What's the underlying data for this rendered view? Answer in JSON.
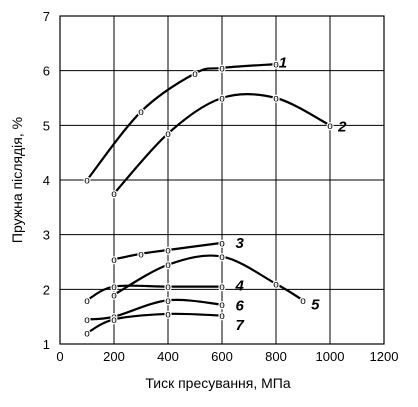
{
  "chart_data": {
    "type": "line",
    "title": "",
    "xlabel": "Тиск пресування,   МПа",
    "ylabel": "Пружна післядія,  %",
    "xlim": [
      0,
      1200
    ],
    "ylim": [
      1,
      7
    ],
    "xticks": [
      0,
      200,
      400,
      600,
      800,
      1000,
      1200
    ],
    "yticks": [
      1,
      2,
      3,
      4,
      5,
      6,
      7
    ],
    "grid": true,
    "marker_text": "o",
    "series": [
      {
        "name": "1",
        "x": [
          100,
          300,
          500,
          600,
          800
        ],
        "y": [
          4.0,
          5.25,
          5.95,
          6.05,
          6.12
        ]
      },
      {
        "name": "2",
        "x": [
          200,
          400,
          600,
          800,
          1000
        ],
        "y": [
          3.75,
          4.85,
          5.5,
          5.5,
          5.0
        ]
      },
      {
        "name": "3",
        "x": [
          200,
          300,
          400,
          600
        ],
        "y": [
          2.55,
          2.65,
          2.72,
          2.85
        ]
      },
      {
        "name": "4",
        "x": [
          100,
          200,
          400,
          600
        ],
        "y": [
          1.8,
          2.05,
          2.05,
          2.05
        ]
      },
      {
        "name": "5",
        "x": [
          200,
          400,
          600,
          800,
          900
        ],
        "y": [
          1.9,
          2.45,
          2.6,
          2.1,
          1.8
        ]
      },
      {
        "name": "6",
        "x": [
          100,
          200,
          400,
          600
        ],
        "y": [
          1.45,
          1.5,
          1.8,
          1.72
        ]
      },
      {
        "name": "7",
        "x": [
          100,
          200,
          400,
          600
        ],
        "y": [
          1.2,
          1.45,
          1.55,
          1.52
        ]
      }
    ],
    "labels": [
      {
        "text": "1",
        "x": 810,
        "y": 6.15
      },
      {
        "text": "2",
        "x": 1030,
        "y": 4.98
      },
      {
        "text": "3",
        "x": 650,
        "y": 2.85
      },
      {
        "text": "4",
        "x": 650,
        "y": 2.07
      },
      {
        "text": "5",
        "x": 930,
        "y": 1.72
      },
      {
        "text": "6",
        "x": 650,
        "y": 1.7
      },
      {
        "text": "7",
        "x": 650,
        "y": 1.35
      }
    ]
  }
}
